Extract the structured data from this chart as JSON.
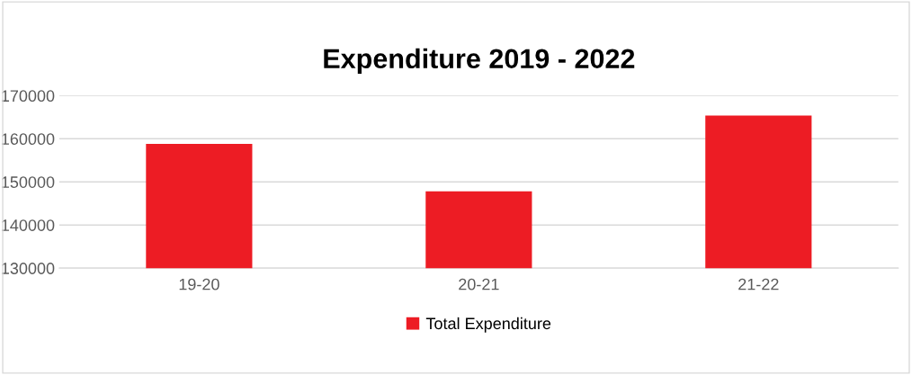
{
  "chart_data": {
    "type": "bar",
    "title": "Expenditure 2019 - 2022",
    "categories": [
      "19-20",
      "20-21",
      "21-22"
    ],
    "series": [
      {
        "name": "Total Expenditure",
        "color": "#ed1c24",
        "values": [
          158800,
          147800,
          165400
        ]
      }
    ],
    "ylim": [
      130000,
      170000
    ],
    "yticks": [
      130000,
      140000,
      150000,
      160000,
      170000
    ],
    "grid": "y",
    "legend": "bottom"
  }
}
